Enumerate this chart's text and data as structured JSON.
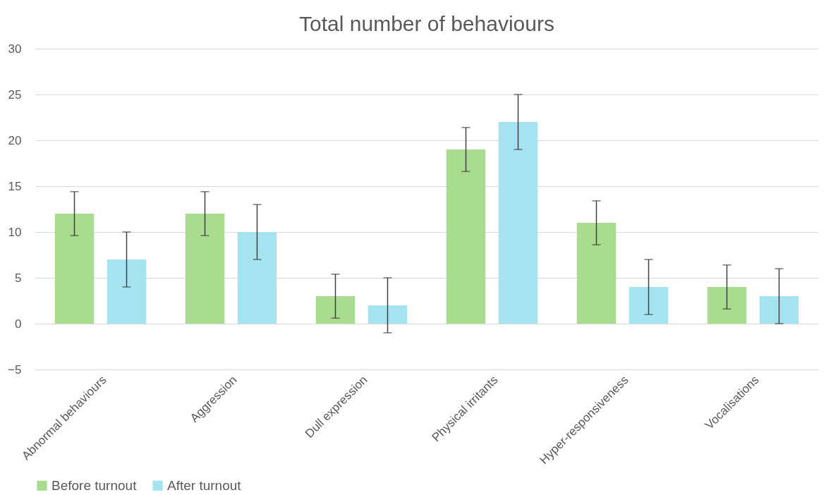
{
  "chart_data": {
    "type": "bar",
    "title": "Total number of behaviours",
    "categories": [
      "Abnormal behaviours",
      "Aggression",
      "Dull expression",
      "Physical irritants",
      "Hyper-responsiveness",
      "Vocalisations"
    ],
    "series": [
      {
        "name": "Before turnout",
        "color": "#a9dc8e",
        "values": [
          12,
          12,
          3,
          19,
          11,
          4
        ],
        "errors": [
          2.4,
          2.4,
          2.4,
          2.4,
          2.4,
          2.4
        ]
      },
      {
        "name": "After turnout",
        "color": "#a6e3f1",
        "values": [
          7,
          10,
          2,
          22,
          4,
          3
        ],
        "errors": [
          3,
          3,
          3,
          3,
          3,
          3
        ]
      }
    ],
    "ylim": [
      -5,
      30
    ],
    "yticks": [
      -5,
      0,
      5,
      10,
      15,
      20,
      25,
      30
    ],
    "grid": "y",
    "legend": "bottom"
  }
}
